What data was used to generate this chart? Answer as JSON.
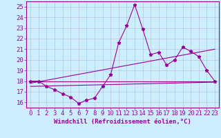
{
  "xlabel": "Windchill (Refroidissement éolien,°C)",
  "background_color": "#cceeff",
  "line_color": "#990099",
  "grid_color": "#bbbbcc",
  "xlim": [
    -0.5,
    23.5
  ],
  "ylim": [
    15.5,
    25.5
  ],
  "yticks": [
    16,
    17,
    18,
    19,
    20,
    21,
    22,
    23,
    24,
    25
  ],
  "xticks": [
    0,
    1,
    2,
    3,
    4,
    5,
    6,
    7,
    8,
    9,
    10,
    11,
    12,
    13,
    14,
    15,
    16,
    17,
    18,
    19,
    20,
    21,
    22,
    23
  ],
  "curve_x": [
    0,
    1,
    2,
    3,
    4,
    5,
    6,
    7,
    8,
    9,
    10,
    11,
    12,
    13,
    14,
    15,
    16,
    17,
    18,
    19,
    20,
    21,
    22,
    23
  ],
  "curve_y": [
    18.0,
    18.0,
    17.5,
    17.2,
    16.8,
    16.5,
    15.9,
    16.2,
    16.4,
    17.5,
    18.6,
    21.6,
    23.2,
    25.2,
    22.9,
    20.5,
    20.7,
    19.5,
    20.0,
    21.2,
    20.8,
    20.3,
    19.0,
    18.0
  ],
  "line1_x": [
    0,
    23
  ],
  "line1_y": [
    18.0,
    18.0
  ],
  "line2_x": [
    0,
    23
  ],
  "line2_y": [
    17.5,
    17.9
  ],
  "line3_x": [
    0,
    23
  ],
  "line3_y": [
    17.8,
    21.0
  ],
  "ticklabel_fontsize": 6.5,
  "xlabel_fontsize": 6.5,
  "figsize": [
    3.2,
    2.0
  ],
  "dpi": 100
}
